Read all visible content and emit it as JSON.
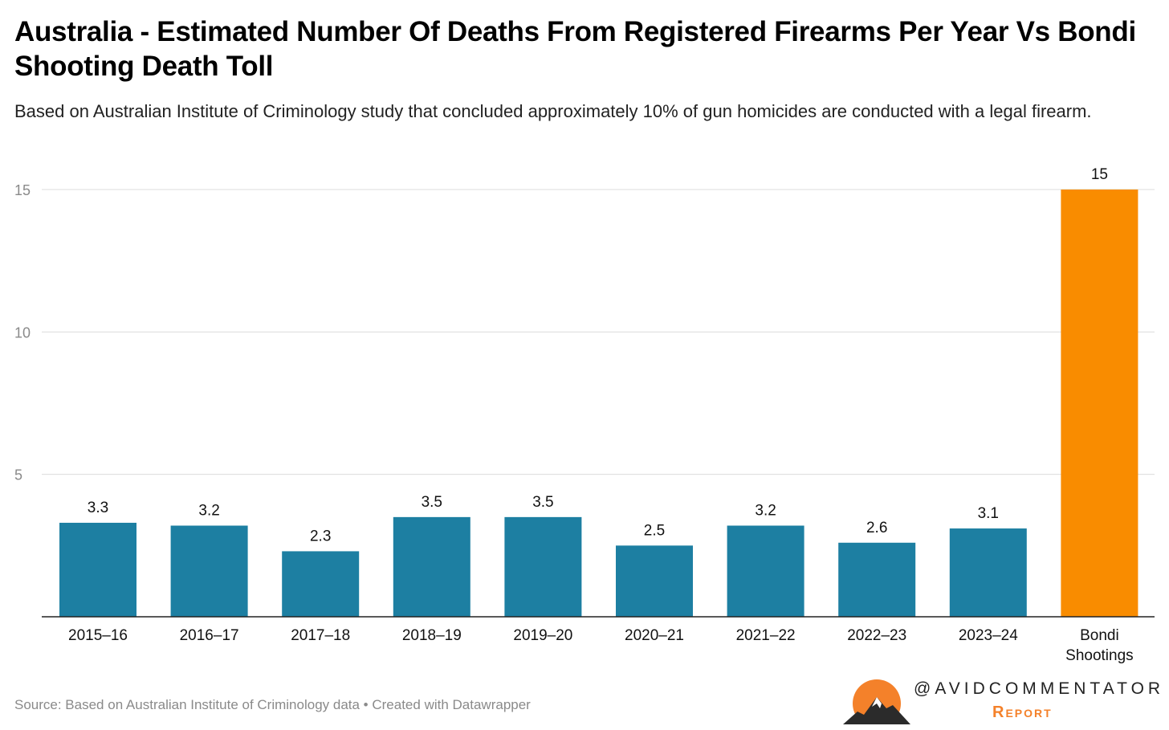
{
  "chart_data": {
    "type": "bar",
    "title": "Australia - Estimated Number Of Deaths From Registered Firearms Per Year Vs Bondi Shooting Death Toll",
    "subtitle": "Based on Australian Institute of Criminology study that concluded approximately 10% of gun homicides are conducted with a legal firearm.",
    "categories": [
      "2015–16",
      "2016–17",
      "2017–18",
      "2018–19",
      "2019–20",
      "2020–21",
      "2021–22",
      "2022–23",
      "2023–24",
      "Bondi Shootings"
    ],
    "values": [
      3.3,
      3.2,
      2.3,
      3.5,
      3.5,
      2.5,
      3.2,
      2.6,
      3.1,
      15
    ],
    "value_labels": [
      "3.3",
      "3.2",
      "2.3",
      "3.5",
      "3.5",
      "2.5",
      "3.2",
      "2.6",
      "3.1",
      "15"
    ],
    "colors": [
      "#1d7fa2",
      "#1d7fa2",
      "#1d7fa2",
      "#1d7fa2",
      "#1d7fa2",
      "#1d7fa2",
      "#1d7fa2",
      "#1d7fa2",
      "#1d7fa2",
      "#f98c00"
    ],
    "yticks": [
      5,
      10,
      15
    ],
    "ytick_labels": [
      "5",
      "10",
      "15"
    ],
    "ylim": [
      0,
      15
    ],
    "grid": true,
    "xlabel": "",
    "ylabel": ""
  },
  "footer": {
    "source": "Source: Based on Australian Institute of Criminology data • Created with Datawrapper"
  },
  "logo": {
    "handle": "@AVIDCOMMENTATOR",
    "report": "Report"
  }
}
